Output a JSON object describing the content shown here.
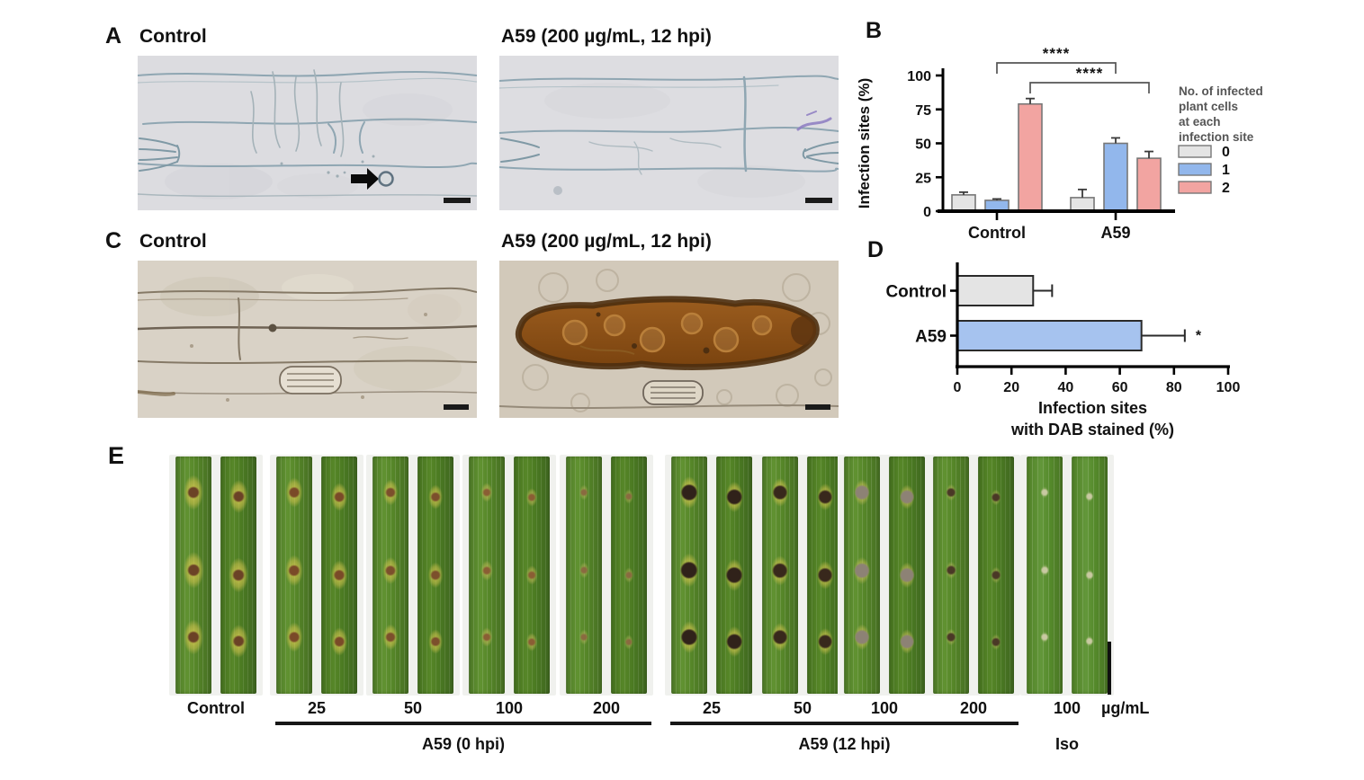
{
  "panels": {
    "A": {
      "label": "A",
      "left_title": "Control",
      "right_title": "A59 (200 µg/mL, 12 hpi)"
    },
    "B": {
      "label": "B"
    },
    "C": {
      "label": "C",
      "left_title": "Control",
      "right_title": "A59 (200 µg/mL, 12 hpi)"
    },
    "D": {
      "label": "D"
    },
    "E": {
      "label": "E"
    }
  },
  "chart_data": [
    {
      "id": "B",
      "type": "bar",
      "title": "",
      "ylabel": "Infection sites (%)",
      "ylim": [
        0,
        100
      ],
      "yticks": [
        0,
        25,
        50,
        75,
        100
      ],
      "categories": [
        "Control",
        "A59"
      ],
      "series": [
        {
          "name": "0",
          "color": "#e4e4e4",
          "values": [
            12,
            10
          ],
          "errors": [
            2,
            6
          ]
        },
        {
          "name": "1",
          "color": "#92b7ec",
          "values": [
            8,
            50
          ],
          "errors": [
            1,
            4
          ]
        },
        {
          "name": "2",
          "color": "#f2a4a1",
          "values": [
            79,
            39
          ],
          "errors": [
            4,
            5
          ]
        }
      ],
      "legend_title_lines": [
        "No. of infected",
        "plant cells",
        "at each",
        "infection site"
      ],
      "legend_position": "right",
      "grid": false,
      "significance": [
        {
          "series_index": 1,
          "between": [
            "Control",
            "A59"
          ],
          "label": "****"
        },
        {
          "series_index": 2,
          "between": [
            "Control",
            "A59"
          ],
          "label": "****"
        }
      ]
    },
    {
      "id": "D",
      "type": "horizontal-bar",
      "xlabel_lines": [
        "Infection sites",
        "with DAB stained (%)"
      ],
      "xlim": [
        0,
        100
      ],
      "xticks": [
        0,
        20,
        40,
        60,
        80,
        100
      ],
      "categories": [
        "Control",
        "A59"
      ],
      "values": [
        28,
        68
      ],
      "errors": [
        7,
        16
      ],
      "bar_colors": [
        "#e4e4e4",
        "#a6c3ef"
      ],
      "annotations": [
        "",
        "*"
      ],
      "grid": false
    }
  ],
  "panel_e": {
    "unit_label": "µg/mL",
    "iso_label": "Iso",
    "groups": [
      {
        "label": "Control",
        "style": "control"
      },
      {
        "label": "25",
        "style": "y1"
      },
      {
        "label": "50",
        "style": "y2"
      },
      {
        "label": "100",
        "style": "y3"
      },
      {
        "label": "200",
        "style": "y4"
      },
      {
        "label": "25",
        "style": "d1"
      },
      {
        "label": "50",
        "style": "d2"
      },
      {
        "label": "100",
        "style": "g1"
      },
      {
        "label": "200",
        "style": "g2"
      },
      {
        "label": "100",
        "style": "iso"
      }
    ],
    "group_brackets": [
      {
        "label": "A59 (0 hpi)",
        "start_group": 1,
        "end_group": 4
      },
      {
        "label": "A59 (12 hpi)",
        "start_group": 5,
        "end_group": 8
      }
    ]
  },
  "colors": {
    "series_0": "#e4e4e4",
    "series_1": "#92b7ec",
    "series_2": "#f2a4a1",
    "axis": "#000000",
    "leaf_green": "#538227",
    "lesion_yellow": "#d7c74f",
    "dab_brown": "#8a4f1a"
  }
}
